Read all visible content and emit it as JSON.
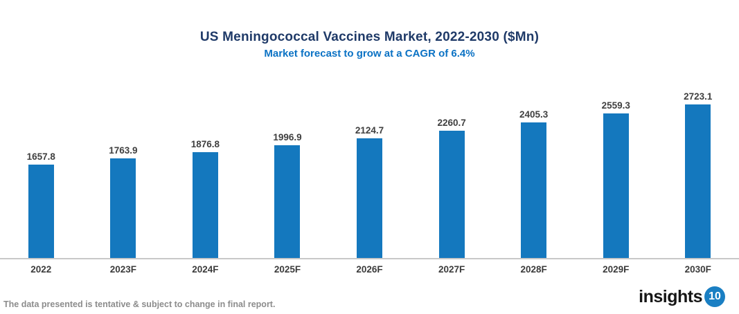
{
  "header": {
    "title": "US Meningococcal Vaccines Market, 2022-2030 ($Mn)",
    "subtitle": "Market forecast to grow at a CAGR of 6.4%"
  },
  "chart_data": {
    "type": "bar",
    "categories": [
      "2022",
      "2023F",
      "2024F",
      "2025F",
      "2026F",
      "2027F",
      "2028F",
      "2029F",
      "2030F"
    ],
    "values": [
      1657.8,
      1763.9,
      1876.8,
      1996.9,
      2124.7,
      2260.7,
      2405.3,
      2559.3,
      2723.1
    ],
    "title": "US Meningococcal Vaccines Market, 2022-2030 ($Mn)",
    "subtitle": "Market forecast to grow at a CAGR of 6.4%",
    "xlabel": "",
    "ylabel": "",
    "ylim": [
      0,
      2723.1
    ],
    "grid": false,
    "legend": false,
    "y_axis_shown": false,
    "value_labels_shown": true,
    "bar_color": "#1478be"
  },
  "footer": {
    "note": "The data presented is tentative & subject to change in final report.",
    "logo_text": "insights",
    "logo_badge": "10"
  },
  "colors": {
    "title": "#1f3a68",
    "subtitle": "#0b72c4",
    "bar": "#1478be",
    "value_label": "#3f3f3f",
    "axis_line": "#c8c8c8",
    "x_label": "#3b3b3b",
    "footnote": "#8c8c8c",
    "logo_text": "#161616",
    "logo_badge_bg": "#1a7fc3",
    "logo_badge_text": "#ffffff"
  }
}
